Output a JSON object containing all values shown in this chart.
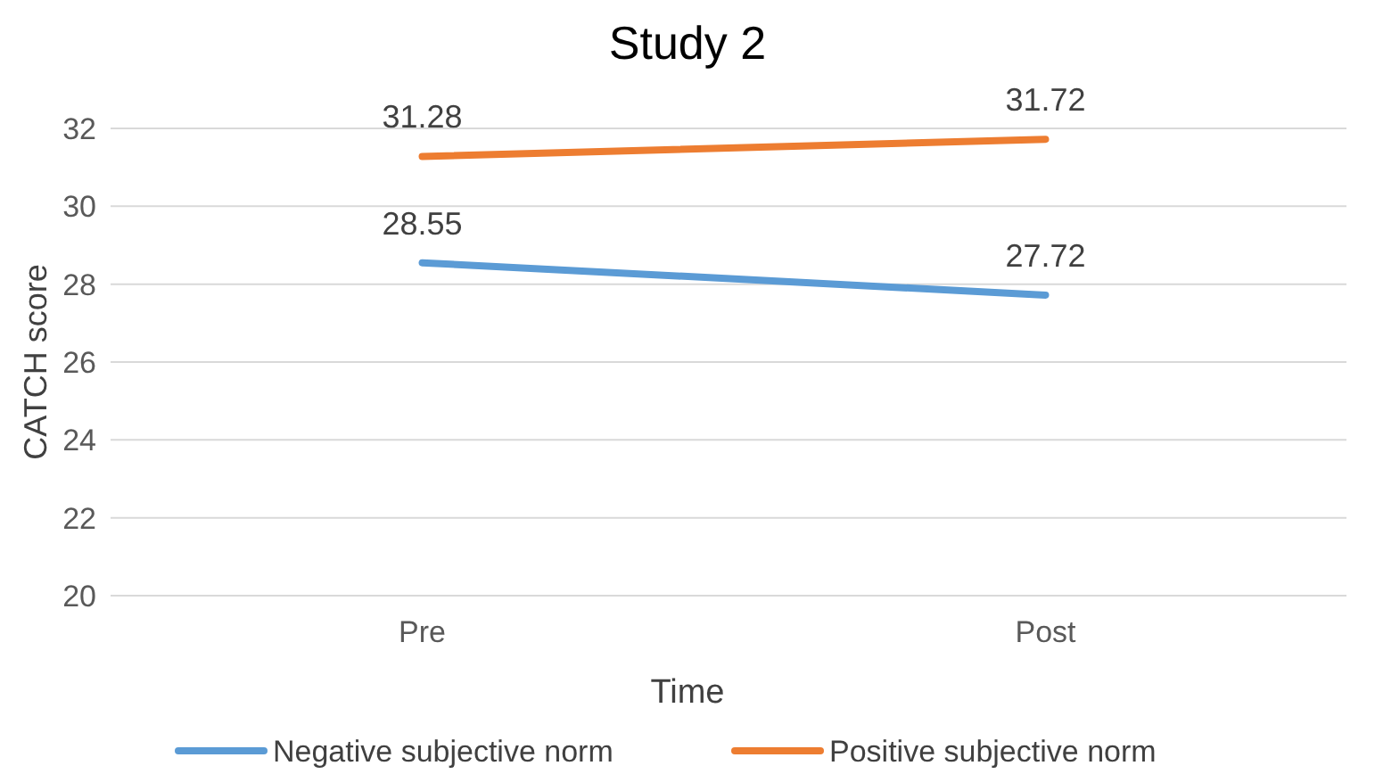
{
  "chart_data": {
    "type": "line",
    "title": "Study 2",
    "xlabel": "Time",
    "ylabel": "CATCH score",
    "categories": [
      "Pre",
      "Post"
    ],
    "series": [
      {
        "name": "Negative subjective norm",
        "color": "#5b9bd5",
        "values": [
          28.55,
          27.72
        ]
      },
      {
        "name": "Positive subjective norm",
        "color": "#ed7d31",
        "values": [
          31.28,
          31.72
        ]
      }
    ],
    "ylim": [
      20,
      32
    ],
    "yticks": [
      20,
      22,
      24,
      26,
      28,
      30,
      32
    ],
    "grid": "y",
    "legend": "bottom",
    "data_labels": true,
    "marker": "none",
    "line_style": "solid"
  }
}
